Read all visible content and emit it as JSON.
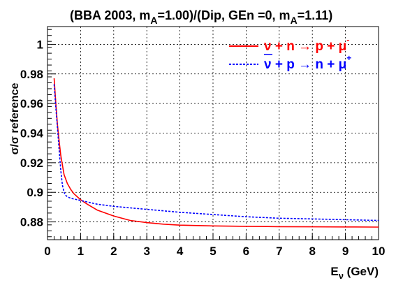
{
  "chart_data": {
    "type": "line",
    "title_parts": [
      "(BBA 2003, m",
      "A",
      "=1.00)/(Dip, GEn =0, m",
      "A",
      "=1.11)"
    ],
    "xlabel_main": "E",
    "xlabel_sub": "ν",
    "xlabel_unit": " (GeV)",
    "ylabel": "σ/σ reference",
    "xlim": [
      0,
      10
    ],
    "ylim": [
      0.868,
      1.012
    ],
    "x_major_ticks": [
      0,
      1,
      2,
      3,
      4,
      5,
      6,
      7,
      8,
      9,
      10
    ],
    "x_tick_labels": [
      "0",
      "1",
      "2",
      "3",
      "4",
      "5",
      "6",
      "7",
      "8",
      "9",
      "10"
    ],
    "y_major_ticks": [
      0.88,
      0.9,
      0.92,
      0.94,
      0.96,
      0.98,
      1.0
    ],
    "y_tick_labels": [
      "0.88",
      "0.9",
      "0.92",
      "0.94",
      "0.96",
      "0.98",
      "1"
    ],
    "grid": true,
    "legend_position": "top-right",
    "series": [
      {
        "name_parts": [
          "ν + n → p + μ",
          "-"
        ],
        "color": "#ff0000",
        "dash": "solid",
        "x": [
          0.2,
          0.25,
          0.3,
          0.35,
          0.4,
          0.5,
          0.6,
          0.7,
          0.8,
          0.9,
          1.0,
          1.2,
          1.5,
          2.0,
          2.5,
          3.0,
          3.5,
          4.0,
          5.0,
          6.0,
          7.0,
          8.0,
          9.0,
          10.0
        ],
        "y": [
          0.977,
          0.961,
          0.946,
          0.935,
          0.925,
          0.912,
          0.906,
          0.902,
          0.899,
          0.897,
          0.895,
          0.892,
          0.888,
          0.884,
          0.881,
          0.8795,
          0.8785,
          0.8778,
          0.8773,
          0.877,
          0.8768,
          0.8767,
          0.8766,
          0.8765
        ]
      },
      {
        "name_parts": [
          "ν",
          " + p → n + μ",
          "+"
        ],
        "color": "#0000ff",
        "dash": "dashed",
        "x": [
          0.2,
          0.25,
          0.3,
          0.35,
          0.4,
          0.45,
          0.5,
          0.55,
          0.6,
          0.7,
          0.8,
          0.9,
          1.0,
          1.2,
          1.5,
          2.0,
          2.5,
          3.0,
          3.5,
          4.0,
          5.0,
          6.0,
          7.0,
          8.0,
          9.0,
          10.0
        ],
        "y": [
          0.973,
          0.958,
          0.944,
          0.929,
          0.915,
          0.905,
          0.9,
          0.898,
          0.897,
          0.896,
          0.8955,
          0.895,
          0.8945,
          0.8935,
          0.892,
          0.8905,
          0.8895,
          0.8885,
          0.8875,
          0.8865,
          0.885,
          0.8835,
          0.8825,
          0.882,
          0.8815,
          0.881
        ]
      }
    ]
  }
}
